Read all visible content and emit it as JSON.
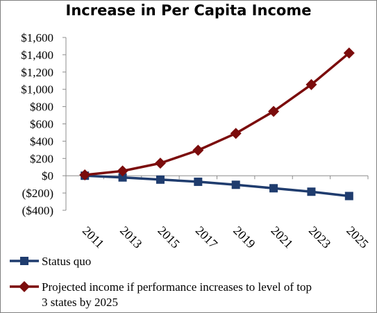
{
  "chart_data": {
    "type": "line",
    "title": "Increase in Per Capita Income",
    "xlabel": "",
    "ylabel": "",
    "categories": [
      "2011",
      "2013",
      "2015",
      "2017",
      "2019",
      "2021",
      "2023",
      "2025"
    ],
    "y_ticks": [
      "$1,600",
      "$1,400",
      "$1,200",
      "$1,000",
      "$800",
      "$600",
      "$400",
      "$200",
      "$0",
      "($200)",
      "($400)"
    ],
    "ylim": [
      -400,
      1600
    ],
    "grid": false,
    "legend_position": "bottom",
    "series": [
      {
        "name": "Status quo",
        "marker": "square",
        "color": "#1f3c6e",
        "values": [
          0,
          -20,
          -45,
          -70,
          -105,
          -145,
          -185,
          -235
        ]
      },
      {
        "name": "Projected income if performance increases to level of top 3 states by 2025",
        "legend_lines": [
          "Projected income if performance increases to level of top",
          "3 states by 2025"
        ],
        "marker": "diamond",
        "color": "#7b0c0c",
        "values": [
          10,
          55,
          145,
          295,
          490,
          745,
          1055,
          1420
        ]
      }
    ]
  }
}
